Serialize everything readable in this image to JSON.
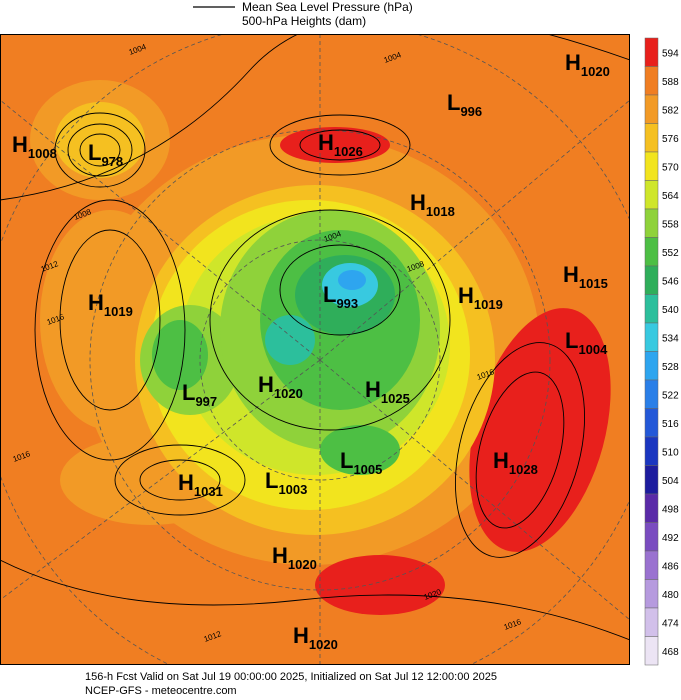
{
  "legend": {
    "line_label": "Mean Sea Level Pressure (hPa)",
    "fill_label": "500-hPa Heights (dam)"
  },
  "colorbar": {
    "labels": [
      594,
      588,
      582,
      576,
      570,
      564,
      558,
      552,
      546,
      540,
      534,
      528,
      522,
      516,
      510,
      504,
      498,
      492,
      486,
      480,
      474,
      468
    ],
    "colors": [
      "#e8201c",
      "#f07e22",
      "#f29a26",
      "#f5c021",
      "#f2e41e",
      "#cfe62a",
      "#8fd23a",
      "#4dbf44",
      "#2fae5a",
      "#2cbf9c",
      "#38c9e0",
      "#2ea5ef",
      "#2a7fe8",
      "#2358d8",
      "#1a36c0",
      "#1d1c9e",
      "#5a2aa8",
      "#7a4cc0",
      "#9a72d0",
      "#b69ade",
      "#d2c0ea",
      "#ece4f4"
    ]
  },
  "pressure_centers": [
    {
      "letter": "H",
      "value": 1020
    },
    {
      "letter": "L",
      "value": 996
    },
    {
      "letter": "H",
      "value": 1008
    },
    {
      "letter": "L",
      "value": 978
    },
    {
      "letter": "H",
      "value": 1026
    },
    {
      "letter": "H",
      "value": 1018
    },
    {
      "letter": "H",
      "value": 1015
    },
    {
      "letter": "H",
      "value": 1019
    },
    {
      "letter": "L",
      "value": 993
    },
    {
      "letter": "H",
      "value": 1019
    },
    {
      "letter": "L",
      "value": 1004
    },
    {
      "letter": "L",
      "value": 997
    },
    {
      "letter": "H",
      "value": 1020
    },
    {
      "letter": "H",
      "value": 1025
    },
    {
      "letter": "H",
      "value": 1028
    },
    {
      "letter": "H",
      "value": 1031
    },
    {
      "letter": "L",
      "value": 1003
    },
    {
      "letter": "L",
      "value": 1005
    },
    {
      "letter": "H",
      "value": 1020
    },
    {
      "letter": "H",
      "value": 1020
    }
  ],
  "contour_labels": [
    1004,
    1004,
    1008,
    1012,
    1016,
    1004,
    1008,
    1016,
    1020,
    1016,
    1012,
    1016
  ],
  "footer": {
    "valid": "156-h Fcst Valid on Sat Jul 19 00:00:00 2025, Initialized on Sat Jul 12 12:00:00 2025",
    "source": "NCEP-GFS - meteocentre.com"
  }
}
